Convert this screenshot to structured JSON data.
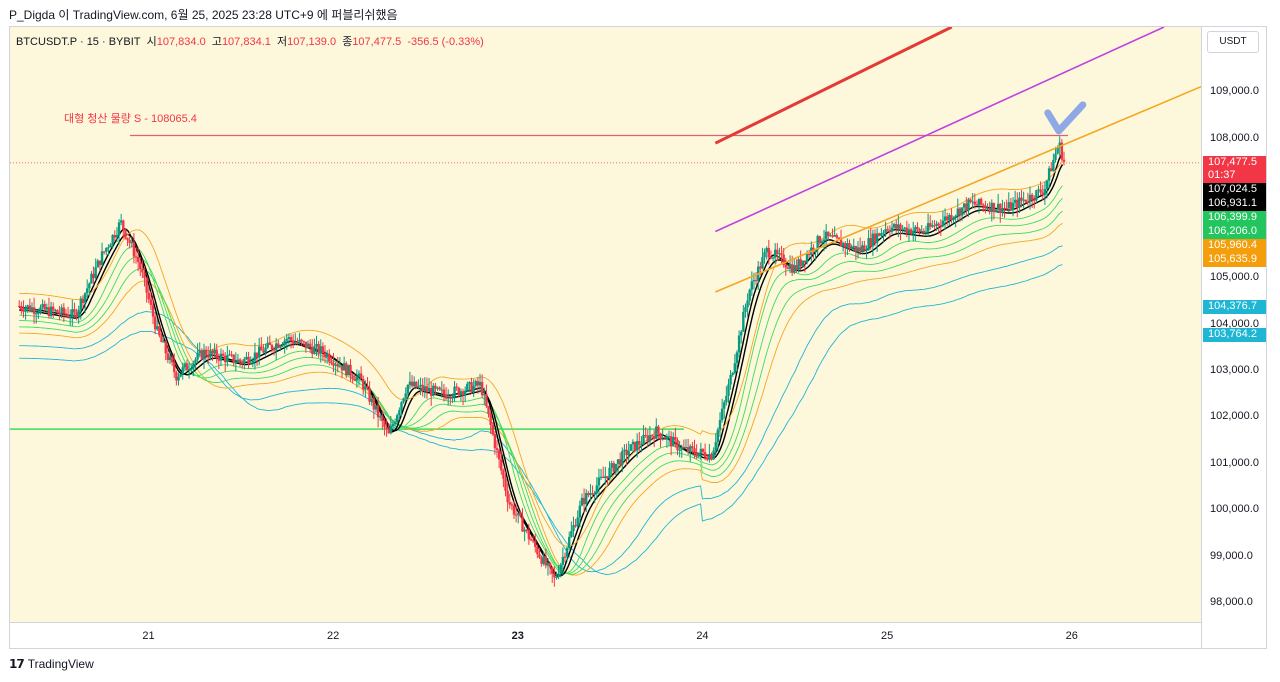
{
  "header": {
    "attribution": "P_Digda 이 TradingView.com, 6월 25, 2025 23:28 UTC+9 에 퍼블리쉬했음"
  },
  "legend": {
    "symbol": "BTCUSDT.P · 15 · BYBIT",
    "open_label": "시",
    "open": "107,834.0",
    "high_label": "고",
    "high": "107,834.1",
    "low_label": "저",
    "low": "107,139.0",
    "close_label": "종",
    "close": "107,477.5",
    "change": "-356.5 (-0.33%)"
  },
  "annotation": {
    "text": "대형 청산 물량 S - 108065.4"
  },
  "currency": "USDT",
  "footer": {
    "brand": "TradingView"
  },
  "colors": {
    "plot_bg": "#fdf8dc",
    "up": "#089981",
    "down": "#f23645",
    "resistance": "#e53935",
    "channel_purple": "#c040e0",
    "channel_orange": "#f5a623",
    "support_green": "#3ddc5a",
    "mark": "#7b9be8"
  },
  "chart_data": {
    "type": "candlestick",
    "symbol": "BTCUSDT.P",
    "interval": "15",
    "exchange": "BYBIT",
    "ylim": [
      97600,
      110400
    ],
    "x_ticks": [
      {
        "label": "21",
        "bold": false
      },
      {
        "label": "22",
        "bold": false
      },
      {
        "label": "23",
        "bold": true
      },
      {
        "label": "24",
        "bold": false
      },
      {
        "label": "25",
        "bold": false
      },
      {
        "label": "26",
        "bold": false
      }
    ],
    "y_ticks": [
      "98,000.0",
      "99,000.0",
      "100,000.0",
      "101,000.0",
      "102,000.0",
      "103,000.0",
      "104,000.0",
      "105,000.0",
      "106,000.0",
      "107,000.0",
      "108,000.0",
      "109,000.0"
    ],
    "y_tick_values": [
      98000,
      99000,
      100000,
      101000,
      102000,
      103000,
      104000,
      105000,
      106000,
      107000,
      108000,
      109000
    ],
    "price_path": [
      {
        "d": 20.3,
        "p": 104400
      },
      {
        "d": 20.6,
        "p": 104200
      },
      {
        "d": 20.75,
        "p": 105500
      },
      {
        "d": 20.85,
        "p": 106200
      },
      {
        "d": 20.95,
        "p": 105300
      },
      {
        "d": 21.05,
        "p": 103800
      },
      {
        "d": 21.15,
        "p": 102900
      },
      {
        "d": 21.3,
        "p": 103400
      },
      {
        "d": 21.5,
        "p": 103200
      },
      {
        "d": 21.75,
        "p": 103700
      },
      {
        "d": 21.95,
        "p": 103400
      },
      {
        "d": 22.15,
        "p": 102800
      },
      {
        "d": 22.3,
        "p": 101600
      },
      {
        "d": 22.4,
        "p": 102700
      },
      {
        "d": 22.6,
        "p": 102500
      },
      {
        "d": 22.8,
        "p": 102700
      },
      {
        "d": 22.95,
        "p": 100200
      },
      {
        "d": 23.05,
        "p": 99500
      },
      {
        "d": 23.2,
        "p": 98500
      },
      {
        "d": 23.35,
        "p": 100200
      },
      {
        "d": 23.6,
        "p": 101300
      },
      {
        "d": 23.75,
        "p": 101700
      },
      {
        "d": 23.9,
        "p": 101300
      },
      {
        "d": 24.05,
        "p": 101200
      },
      {
        "d": 24.15,
        "p": 102800
      },
      {
        "d": 24.25,
        "p": 104700
      },
      {
        "d": 24.35,
        "p": 105600
      },
      {
        "d": 24.5,
        "p": 105200
      },
      {
        "d": 24.65,
        "p": 105900
      },
      {
        "d": 24.85,
        "p": 105600
      },
      {
        "d": 25.0,
        "p": 106100
      },
      {
        "d": 25.2,
        "p": 106000
      },
      {
        "d": 25.45,
        "p": 106600
      },
      {
        "d": 25.65,
        "p": 106500
      },
      {
        "d": 25.85,
        "p": 106900
      },
      {
        "d": 25.93,
        "p": 107900
      },
      {
        "d": 25.96,
        "p": 107477.5
      }
    ],
    "support_line": 101750,
    "resistance_level": 108065.4,
    "resistance_label": "대형 청산 물량 S - 108065.4",
    "trendlines": [
      {
        "color": "red",
        "from": {
          "d": 24.07,
          "p": 107900
        },
        "to": {
          "d": 25.35,
          "p": 110400
        }
      },
      {
        "color": "purple",
        "from": {
          "d": 24.07,
          "p": 106000
        },
        "to": {
          "d": 26.5,
          "p": 110400
        }
      },
      {
        "color": "orange",
        "from": {
          "d": 24.07,
          "p": 104700
        },
        "to": {
          "d": 26.75,
          "p": 109200
        }
      }
    ],
    "price_labels": [
      {
        "text": "107,477.5",
        "sub": "01:37",
        "value": 107477.5,
        "bg": "#f23645"
      },
      {
        "text": "107,024.5",
        "value": 107024.5,
        "bg": "#000000"
      },
      {
        "text": "106,931.1",
        "value": 106931.1,
        "bg": "#000000"
      },
      {
        "text": "106,399.9",
        "value": 106399.9,
        "bg": "#22c55e"
      },
      {
        "text": "106,206.0",
        "value": 106206.0,
        "bg": "#22c55e"
      },
      {
        "text": "105,960.4",
        "value": 105960.4,
        "bg": "#f59e0b"
      },
      {
        "text": "105,635.9",
        "value": 105635.9,
        "bg": "#f59e0b"
      },
      {
        "text": "104,376.7",
        "value": 104376.7,
        "bg": "#1fb6d4"
      },
      {
        "text": "103,764.2",
        "value": 103764.2,
        "bg": "#1fb6d4"
      }
    ]
  }
}
